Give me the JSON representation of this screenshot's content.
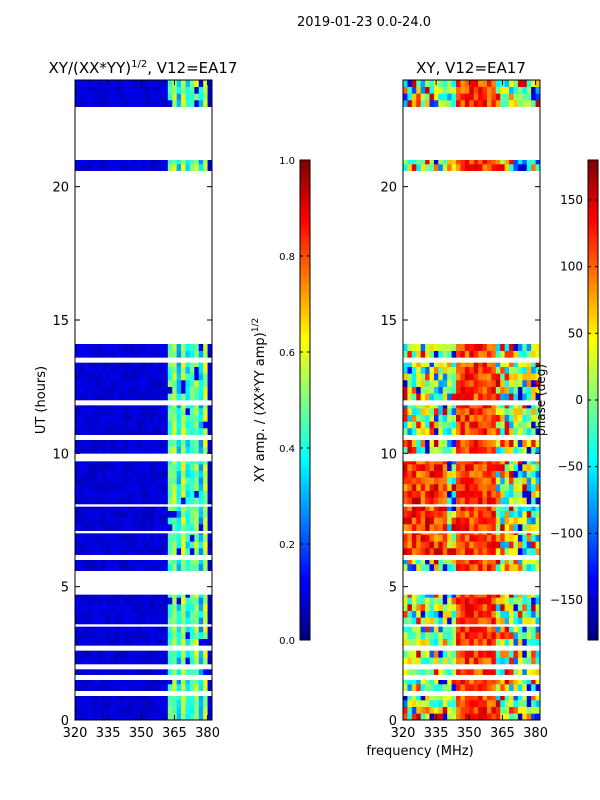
{
  "figure": {
    "suptitle": "2019-01-23 0.0-24.0",
    "xlabel": "frequency (MHz)"
  },
  "colormap": [
    "#00007f",
    "#0000ff",
    "#007fff",
    "#00ffff",
    "#7fff7f",
    "#ffff00",
    "#ff7f00",
    "#ff0000",
    "#7f0000"
  ],
  "chart_data": [
    {
      "type": "heatmap",
      "title": "XY/(XX*YY)",
      "title_exponent": "1/2",
      "title_suffix": ", V12=EA17",
      "ylabel": "UT (hours)",
      "xlim": [
        320,
        382
      ],
      "ylim": [
        0,
        24
      ],
      "xticks": [
        320,
        335,
        350,
        365,
        380
      ],
      "yticks": [
        0,
        5,
        10,
        15,
        20
      ],
      "colorbar": {
        "label": "XY amp. / (XX*YY amp)",
        "label_exponent": "1/2",
        "range": [
          0.0,
          1.0
        ],
        "ticks": [
          "0.0",
          "0.2",
          "0.4",
          "0.6",
          "0.8",
          "1.0"
        ],
        "tick_values": [
          0,
          0.2,
          0.4,
          0.6,
          0.8,
          1.0
        ]
      },
      "data_intervals_hours": [
        [
          0,
          0.9
        ],
        [
          1.1,
          1.5
        ],
        [
          1.7,
          1.9
        ],
        [
          2.1,
          2.6
        ],
        [
          2.8,
          3.5
        ],
        [
          3.6,
          4.7
        ],
        [
          5.6,
          6.0
        ],
        [
          6.2,
          7.0
        ],
        [
          7.1,
          8.0
        ],
        [
          8.1,
          9.7
        ],
        [
          10.0,
          10.5
        ],
        [
          10.7,
          11.8
        ],
        [
          12.0,
          13.4
        ],
        [
          13.6,
          14.1
        ],
        [
          20.6,
          21.0
        ],
        [
          23.0,
          24.0
        ]
      ],
      "summary": "Low normalized amplitude (~0.05-0.1) across 320-362 MHz; enhanced amplitude (~0.3-0.6) in vertical stripes between ~363 and 380 MHz"
    },
    {
      "type": "heatmap",
      "title": "XY, V12=EA17",
      "xlim": [
        320,
        382
      ],
      "ylim": [
        0,
        24
      ],
      "xticks": [
        320,
        335,
        350,
        365,
        380
      ],
      "yticks": [
        0,
        5,
        10,
        15,
        20
      ],
      "colorbar": {
        "label": "phase (deg)",
        "range": [
          -180,
          180
        ],
        "ticks": [
          "−150",
          "−100",
          "−50",
          "0",
          "50",
          "100",
          "150"
        ],
        "tick_values": [
          -150,
          -100,
          -50,
          0,
          50,
          100,
          150
        ]
      },
      "data_intervals_hours": [
        [
          0,
          0.9
        ],
        [
          1.1,
          1.5
        ],
        [
          1.7,
          1.9
        ],
        [
          2.1,
          2.6
        ],
        [
          2.8,
          3.5
        ],
        [
          3.6,
          4.7
        ],
        [
          5.6,
          6.0
        ],
        [
          6.2,
          7.0
        ],
        [
          7.1,
          8.0
        ],
        [
          8.1,
          9.7
        ],
        [
          10.0,
          10.5
        ],
        [
          10.7,
          11.8
        ],
        [
          12.0,
          13.4
        ],
        [
          13.6,
          14.1
        ],
        [
          20.6,
          21.0
        ],
        [
          23.0,
          24.0
        ]
      ],
      "summary": "Phase near +100 to +150 deg concentrated in a broad band around 345-362 MHz; mixed phase (-150 to +150 deg) elsewhere"
    }
  ]
}
